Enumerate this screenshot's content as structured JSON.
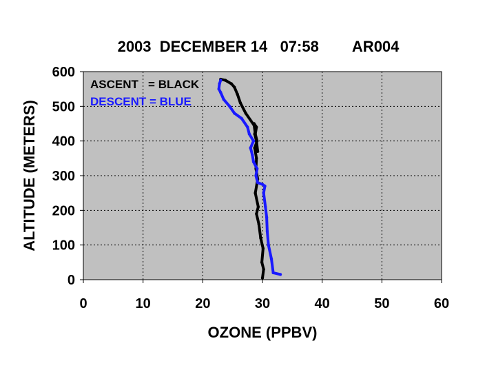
{
  "chart_data": {
    "type": "line",
    "title": "2003  DECEMBER 14   07:58        AR004",
    "xlabel": "OZONE (PPBV)",
    "ylabel": "ALTITUDE (METERS)",
    "xlim": [
      0,
      60
    ],
    "ylim": [
      0,
      600
    ],
    "xticks": [
      "0",
      "10",
      "20",
      "30",
      "40",
      "50",
      "60"
    ],
    "yticks": [
      "0",
      "100",
      "200",
      "300",
      "400",
      "500",
      "600"
    ],
    "grid": true,
    "plot_background": "#c0c0c0",
    "annotations": [
      {
        "text": "ASCENT   = BLACK",
        "color": "#000000"
      },
      {
        "text": "DESCENT = BLUE",
        "color": "#1a1aff"
      }
    ],
    "series": [
      {
        "color": "#000000",
        "x": [
          30.0,
          30.2,
          29.9,
          30.1,
          29.7,
          29.4,
          29.0,
          29.3,
          28.8,
          29.2,
          28.9,
          29.0,
          28.7,
          29.1,
          28.8,
          29.0,
          28.6,
          28.9,
          28.7,
          29.0,
          29.2,
          28.6,
          27.2,
          26.3,
          25.8,
          25.3,
          24.8,
          23.8,
          23.0
        ],
        "y": [
          5,
          30,
          50,
          90,
          120,
          160,
          190,
          210,
          250,
          290,
          320,
          350,
          380,
          400,
          420,
          440,
          450,
          440,
          420,
          400,
          370,
          445,
          480,
          510,
          535,
          555,
          565,
          575,
          578
        ]
      },
      {
        "color": "#1a1aff",
        "x": [
          33.0,
          31.8,
          31.5,
          31.0,
          30.8,
          30.7,
          30.5,
          30.2,
          30.4,
          30.0,
          29.2,
          28.9,
          29.1,
          28.5,
          28.3,
          28.0,
          28.5,
          27.8,
          27.5,
          26.5,
          25.3,
          24.5,
          23.5,
          23.0,
          22.7,
          22.8,
          23.0
        ],
        "y": [
          15,
          20,
          60,
          100,
          140,
          180,
          210,
          250,
          270,
          275,
          280,
          300,
          320,
          340,
          360,
          380,
          400,
          420,
          440,
          465,
          480,
          500,
          520,
          540,
          550,
          565,
          575
        ]
      }
    ]
  }
}
